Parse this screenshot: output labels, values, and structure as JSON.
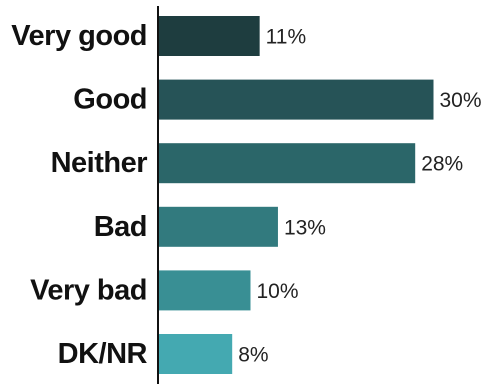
{
  "chart_data": {
    "type": "bar",
    "orientation": "horizontal",
    "categories": [
      "Very good",
      "Good",
      "Neither",
      "Bad",
      "Very bad",
      "DK/NR"
    ],
    "values": [
      11,
      30,
      28,
      13,
      10,
      8
    ],
    "value_labels": [
      "11%",
      "30%",
      "28%",
      "13%",
      "10%",
      "8%"
    ],
    "unit": "%",
    "xlim": [
      0,
      30
    ],
    "bar_colors": [
      "#1e3d3f",
      "#265357",
      "#2b6669",
      "#327a7e",
      "#398f94",
      "#44a9b1"
    ],
    "axis_color": "#111111",
    "grid": false,
    "legend": "none"
  }
}
